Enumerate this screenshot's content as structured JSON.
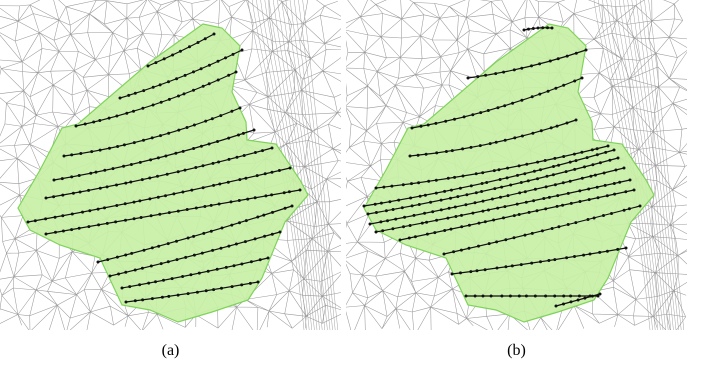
{
  "panels": [
    {
      "id": "a",
      "caption": "(a)"
    },
    {
      "id": "b",
      "caption": "(b)"
    }
  ],
  "colors": {
    "mesh_edge": "#9a9a9a",
    "patch_fill": "#c8f0a6",
    "patch_edge": "#7fd35a",
    "streamline": "#111111",
    "background": "#ffffff"
  }
}
